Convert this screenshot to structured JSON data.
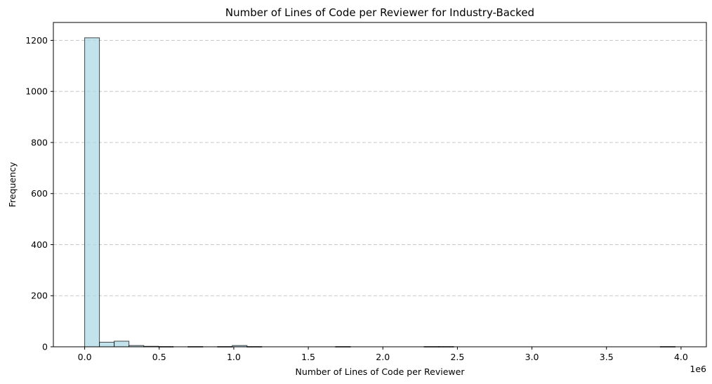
{
  "chart_data": {
    "type": "bar",
    "title": "Number of Lines of Code per Reviewer for Industry-Backed",
    "xlabel": "Number of Lines of Code per Reviewer",
    "ylabel": "Frequency",
    "x_offset_label": "1e6",
    "bin_width": 99000,
    "bin_start": 0,
    "values": [
      1210,
      18,
      22,
      5,
      2,
      1,
      0,
      1,
      0,
      1,
      5,
      1,
      0,
      0,
      0,
      0,
      0,
      1,
      0,
      0,
      0,
      0,
      0,
      1,
      1,
      0,
      0,
      0,
      0,
      0,
      0,
      0,
      0,
      0,
      0,
      0,
      0,
      0,
      0,
      1
    ],
    "xlim": [
      -210000,
      4170000
    ],
    "ylim": [
      0,
      1270
    ],
    "xticks": [
      0,
      500000,
      1000000,
      1500000,
      2000000,
      2500000,
      3000000,
      3500000,
      4000000
    ],
    "xtick_labels": [
      "0.0",
      "0.5",
      "1.0",
      "1.5",
      "2.0",
      "2.5",
      "3.0",
      "3.5",
      "4.0"
    ],
    "yticks": [
      0,
      200,
      400,
      600,
      800,
      1000,
      1200
    ],
    "ytick_labels": [
      "0",
      "200",
      "400",
      "600",
      "800",
      "1000",
      "1200"
    ],
    "grid": {
      "y": true,
      "x": false,
      "style": "dashed"
    },
    "colors": {
      "bar_fill": "#add8e6",
      "bar_edge": "#000000",
      "grid": "#c8c8c8"
    }
  }
}
